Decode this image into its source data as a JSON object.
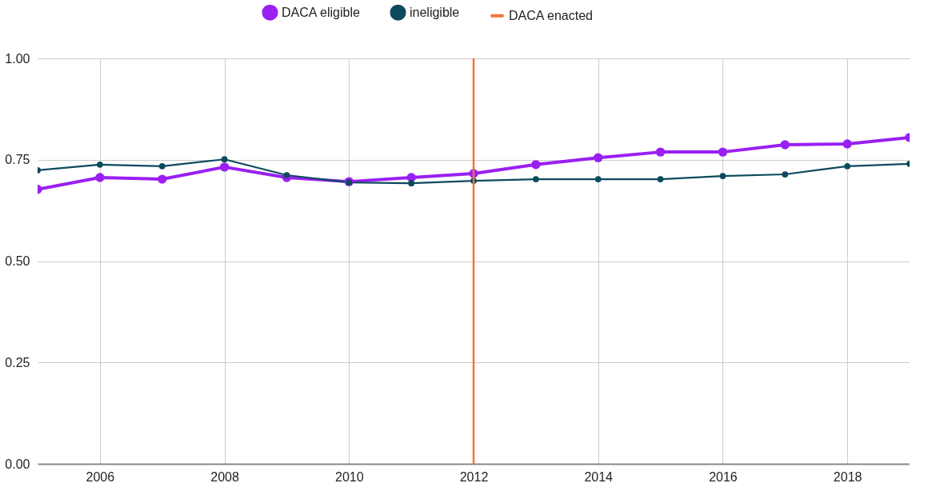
{
  "chart_data": {
    "type": "line",
    "x": [
      2005,
      2006,
      2007,
      2008,
      2009,
      2010,
      2011,
      2012,
      2013,
      2014,
      2015,
      2016,
      2017,
      2018,
      2019
    ],
    "series": [
      {
        "name": "DACA eligible",
        "color": "#9a1ff2",
        "values": [
          0.677,
          0.706,
          0.702,
          0.732,
          0.706,
          0.696,
          0.706,
          0.716,
          0.738,
          0.755,
          0.769,
          0.769,
          0.787,
          0.789,
          0.805
        ]
      },
      {
        "name": "ineligible",
        "color": "#0d4a5e",
        "values": [
          0.724,
          0.738,
          0.734,
          0.751,
          0.712,
          0.694,
          0.692,
          0.698,
          0.702,
          0.702,
          0.702,
          0.71,
          0.714,
          0.734,
          0.74
        ]
      }
    ],
    "ref_lines": [
      {
        "axis": "x",
        "value": 2012,
        "label": "DACA enacted",
        "color": "#f4733a"
      }
    ],
    "xlim": [
      2005,
      2019
    ],
    "xticks": [
      2006,
      2008,
      2010,
      2012,
      2014,
      2016,
      2018
    ],
    "ylim": [
      0,
      1
    ],
    "yticks": [
      {
        "value": 0,
        "label": "0.00"
      },
      {
        "value": 0.25,
        "label": "0.25"
      },
      {
        "value": 0.5,
        "label": "0.50"
      },
      {
        "value": 0.75,
        "label": "0.75"
      },
      {
        "value": 1,
        "label": "1.00"
      }
    ],
    "grid": true,
    "legend": "top",
    "marker": "circle",
    "line_style": "solid"
  }
}
